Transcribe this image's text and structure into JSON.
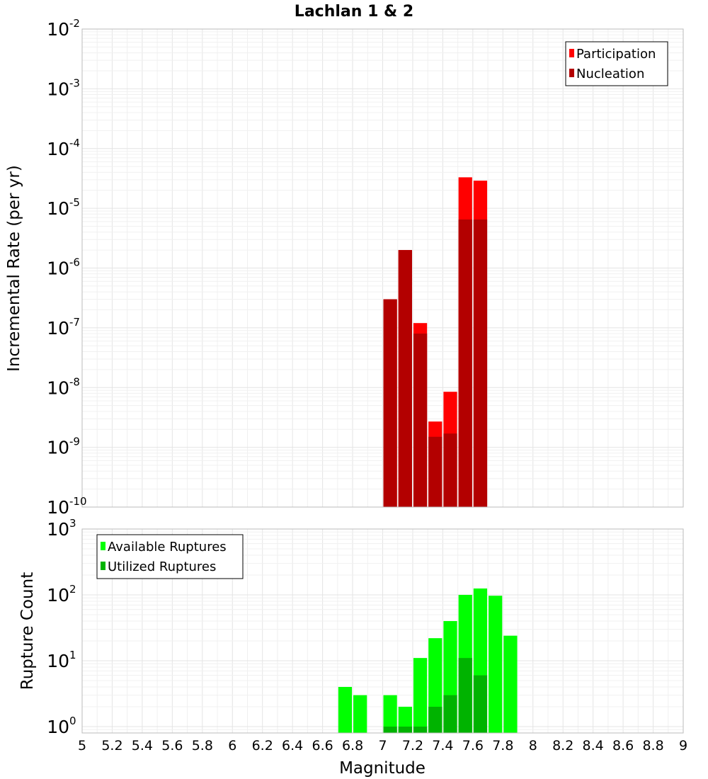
{
  "chart_data": [
    {
      "type": "bar",
      "title": "Lachlan 1 & 2",
      "xlabel": "",
      "ylabel": "Incremental Rate (per yr)",
      "yscale": "log",
      "xlim": [
        5,
        9
      ],
      "ylim": [
        1e-10,
        0.01
      ],
      "grid": true,
      "legend_position": "top-right",
      "bin_width": 0.1,
      "series": [
        {
          "name": "Participation",
          "color": "#ff0000",
          "x": [
            7.05,
            7.15,
            7.25,
            7.35,
            7.45,
            7.55,
            7.65
          ],
          "values": [
            3e-07,
            2e-06,
            1.2e-07,
            2.7e-09,
            8.5e-09,
            3.3e-05,
            2.9e-05
          ]
        },
        {
          "name": "Nucleation",
          "color": "#b30000",
          "x": [
            7.05,
            7.15,
            7.25,
            7.35,
            7.45,
            7.55,
            7.65
          ],
          "values": [
            3e-07,
            2e-06,
            8e-08,
            1.5e-09,
            1.7e-09,
            6.5e-06,
            6.5e-06
          ]
        }
      ],
      "y_ticks": [
        {
          "base": "10",
          "exp": "-2"
        },
        {
          "base": "10",
          "exp": "-3"
        },
        {
          "base": "10",
          "exp": "-4"
        },
        {
          "base": "10",
          "exp": "-5"
        },
        {
          "base": "10",
          "exp": "-6"
        },
        {
          "base": "10",
          "exp": "-7"
        },
        {
          "base": "10",
          "exp": "-8"
        },
        {
          "base": "10",
          "exp": "-9"
        },
        {
          "base": "10",
          "exp": "-10"
        }
      ]
    },
    {
      "type": "bar",
      "title": "",
      "xlabel": "Magnitude",
      "ylabel": "Rupture Count",
      "yscale": "log",
      "xlim": [
        5,
        9
      ],
      "ylim": [
        0.8,
        1000
      ],
      "grid": true,
      "legend_position": "top-left",
      "bin_width": 0.1,
      "series": [
        {
          "name": "Available Ruptures",
          "color": "#00ff00",
          "x": [
            6.75,
            6.85,
            7.05,
            7.15,
            7.25,
            7.35,
            7.45,
            7.55,
            7.65,
            7.75,
            7.85
          ],
          "values": [
            4,
            3,
            3,
            2,
            11,
            22,
            40,
            100,
            125,
            97,
            24
          ]
        },
        {
          "name": "Utilized Ruptures",
          "color": "#00b300",
          "x": [
            7.05,
            7.15,
            7.25,
            7.35,
            7.45,
            7.55,
            7.65
          ],
          "values": [
            1,
            1,
            1,
            2,
            3,
            11,
            6
          ]
        }
      ],
      "x_ticks": [
        "5",
        "5.2",
        "5.4",
        "5.6",
        "5.8",
        "6",
        "6.2",
        "6.4",
        "6.6",
        "6.8",
        "7",
        "7.2",
        "7.4",
        "7.6",
        "7.8",
        "8",
        "8.2",
        "8.4",
        "8.6",
        "8.8",
        "9"
      ],
      "y_ticks": [
        {
          "base": "10",
          "exp": "3"
        },
        {
          "base": "10",
          "exp": "2"
        },
        {
          "base": "10",
          "exp": "1"
        },
        {
          "base": "10",
          "exp": "0"
        }
      ]
    }
  ]
}
